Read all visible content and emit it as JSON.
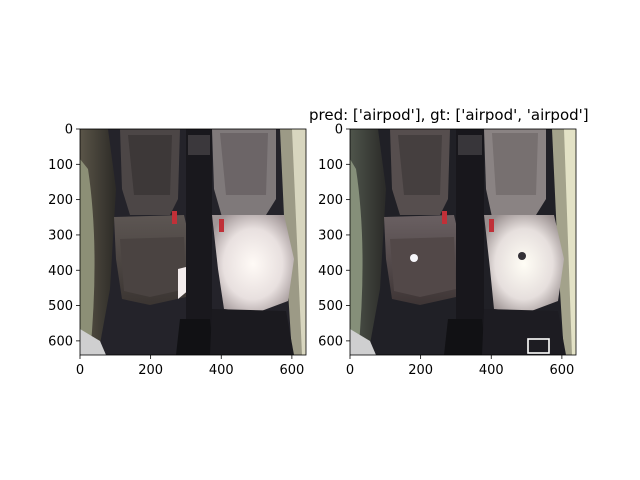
{
  "figure": {
    "title_right": "pred: ['airpod'], gt: ['airpod', 'airpod']"
  },
  "axes": {
    "x_ticks": [
      "0",
      "200",
      "400",
      "600"
    ],
    "y_ticks": [
      "0",
      "100",
      "200",
      "300",
      "400",
      "500",
      "600"
    ],
    "x_tick_values": [
      0,
      200,
      400,
      600
    ],
    "y_tick_values": [
      0,
      100,
      200,
      300,
      400,
      500,
      600
    ],
    "xlim": [
      0,
      640
    ],
    "ylim": [
      640,
      0
    ]
  },
  "panels": [
    {
      "name": "left-image",
      "content": "car-rear-seats-photo"
    },
    {
      "name": "right-image",
      "content": "car-rear-seats-photo-annotated"
    }
  ],
  "annotations": {
    "right_box_color": "#ffffff"
  }
}
